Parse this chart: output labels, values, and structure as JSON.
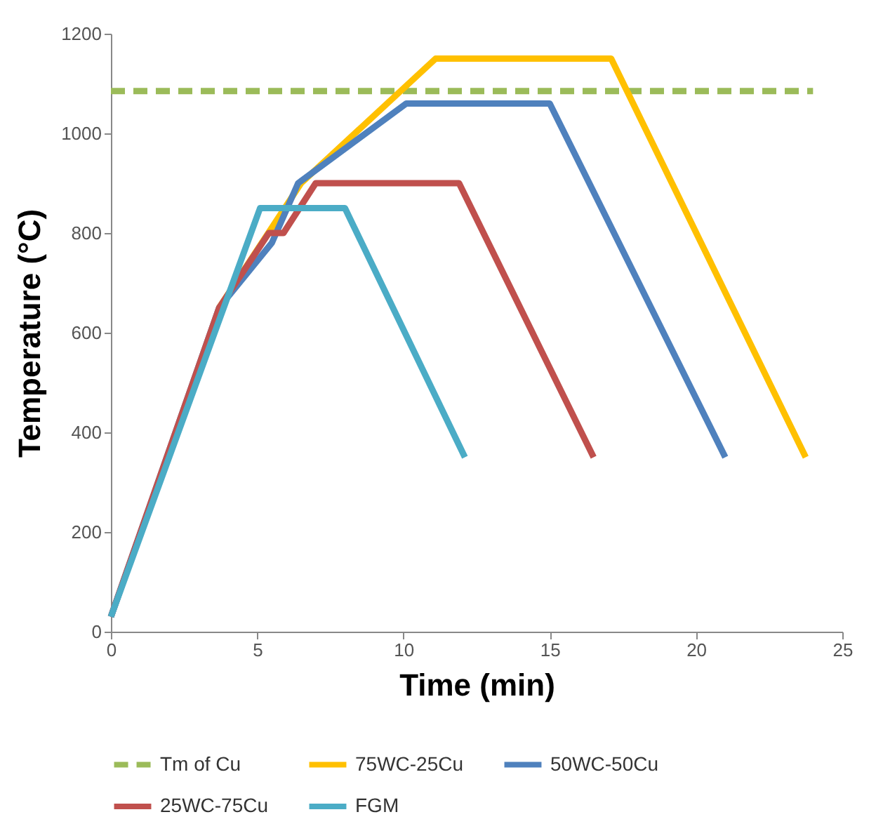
{
  "chart_data": {
    "type": "line",
    "xlabel": "Time (min)",
    "ylabel": "Temperature (°C)",
    "xlim": [
      0,
      25
    ],
    "xticks": [
      0,
      5,
      10,
      15,
      20,
      25
    ],
    "ylim": [
      0,
      1200
    ],
    "yticks": [
      0,
      200,
      400,
      600,
      800,
      1000,
      1200
    ],
    "grid": false,
    "legend": "bottom",
    "marker": "none",
    "series": [
      {
        "name": "Tm of Cu",
        "color": "#9bbb59",
        "line_style": "dashed",
        "x": [
          0,
          24
        ],
        "values": [
          1085,
          1085
        ]
      },
      {
        "name": "75WC-25Cu",
        "color": "#ffc000",
        "line_style": "solid",
        "x": [
          3.7,
          6.5,
          11.1,
          17.1,
          23.75
        ],
        "values": [
          650,
          900,
          1150,
          1150,
          350
        ]
      },
      {
        "name": "50WC-50Cu",
        "color": "#4f81bd",
        "line_style": "solid",
        "x": [
          0,
          3.7,
          5.5,
          6.4,
          10.1,
          15.0,
          21.0
        ],
        "values": [
          30,
          650,
          780,
          900,
          1060,
          1060,
          350
        ]
      },
      {
        "name": "25WC-75Cu",
        "color": "#c0504d",
        "line_style": "solid",
        "x": [
          0,
          3.7,
          5.4,
          5.9,
          7.0,
          11.9,
          16.5
        ],
        "values": [
          30,
          650,
          800,
          800,
          900,
          900,
          350
        ]
      },
      {
        "name": "FGM",
        "color": "#4bacc6",
        "line_style": "solid",
        "x": [
          0,
          5.1,
          8.0,
          12.1
        ],
        "values": [
          30,
          850,
          850,
          350
        ]
      }
    ]
  }
}
